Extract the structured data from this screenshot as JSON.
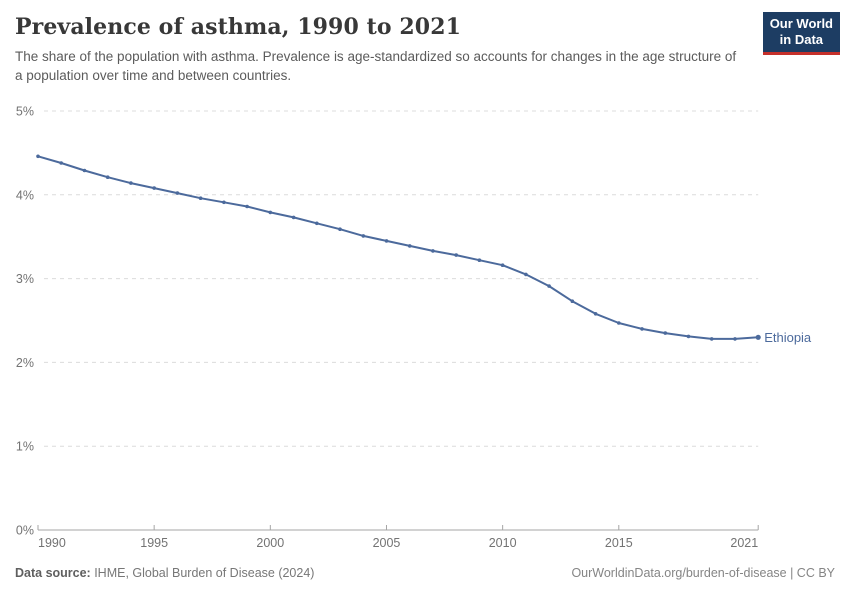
{
  "header": {
    "title": "Prevalence of asthma, 1990 to 2021",
    "subtitle": "The share of the population with asthma. Prevalence is age-standardized so accounts for changes in the age structure of a population over time and between countries.",
    "logo": {
      "line1": "Our World",
      "line2": "in Data",
      "bg_color": "#1d3d63",
      "accent_color": "#c5302b"
    }
  },
  "chart_data": {
    "type": "line",
    "title": "Prevalence of asthma, 1990 to 2021",
    "xlabel": "",
    "ylabel": "",
    "x": [
      1990,
      1991,
      1992,
      1993,
      1994,
      1995,
      1996,
      1997,
      1998,
      1999,
      2000,
      2001,
      2002,
      2003,
      2004,
      2005,
      2006,
      2007,
      2008,
      2009,
      2010,
      2011,
      2012,
      2013,
      2014,
      2015,
      2016,
      2017,
      2018,
      2019,
      2020,
      2021
    ],
    "series": [
      {
        "name": "Ethiopia",
        "color": "#4c6a9c",
        "values": [
          4.46,
          4.38,
          4.29,
          4.21,
          4.14,
          4.08,
          4.02,
          3.96,
          3.91,
          3.86,
          3.79,
          3.73,
          3.66,
          3.59,
          3.51,
          3.45,
          3.39,
          3.33,
          3.28,
          3.22,
          3.16,
          3.05,
          2.91,
          2.73,
          2.58,
          2.47,
          2.4,
          2.35,
          2.31,
          2.28,
          2.28,
          2.3
        ]
      }
    ],
    "ylim": [
      0,
      5
    ],
    "yticks": [
      0,
      1,
      2,
      3,
      4,
      5
    ],
    "ytick_labels": [
      "0%",
      "1%",
      "2%",
      "3%",
      "4%",
      "5%"
    ],
    "xticks": [
      1990,
      1995,
      2000,
      2005,
      2010,
      2015,
      2021
    ],
    "xtick_labels": [
      "1990",
      "1995",
      "2000",
      "2005",
      "2010",
      "2015",
      "2021"
    ],
    "grid": "horizontal-dashed",
    "gridline_color": "#dcdcdc",
    "axis_color": "#a5a5a5",
    "legend_position": "end-of-line"
  },
  "footer": {
    "source_label": "Data source:",
    "source_value": " IHME, Global Burden of Disease (2024)",
    "credit": "OurWorldinData.org/burden-of-disease | CC BY"
  }
}
